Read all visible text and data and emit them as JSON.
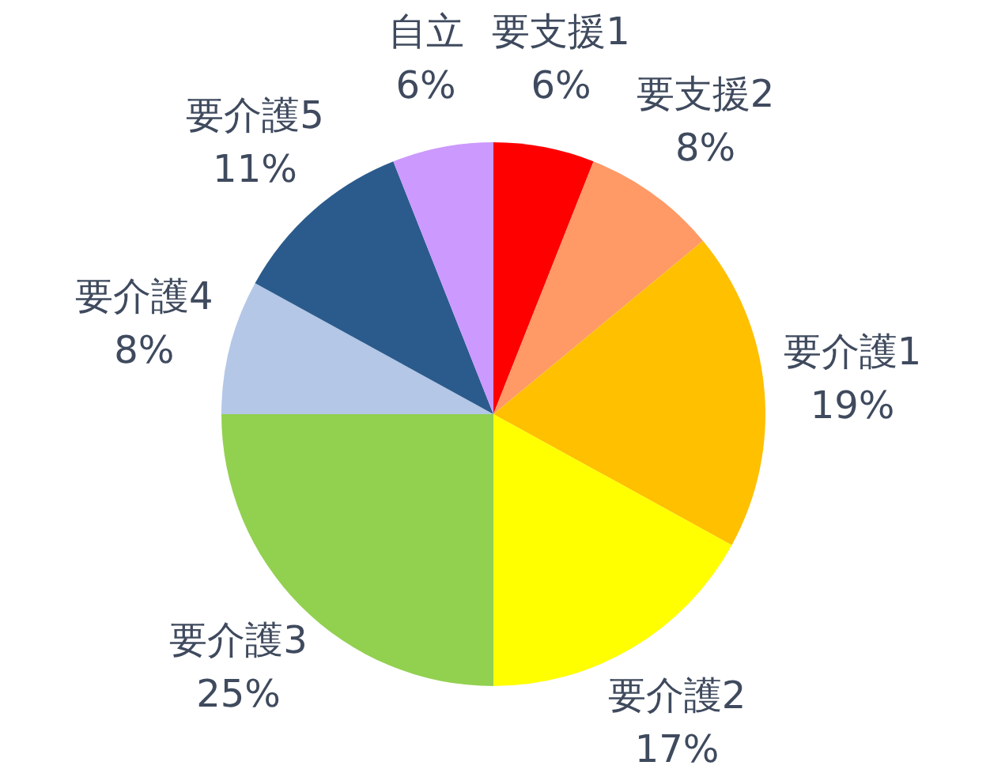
{
  "chart_data": {
    "type": "pie",
    "categories": [
      "要支援1",
      "要支援2",
      "要介護1",
      "要介護2",
      "要介護3",
      "要介護4",
      "要介護5",
      "自立"
    ],
    "values": [
      6,
      8,
      19,
      17,
      25,
      8,
      11,
      6
    ],
    "value_labels": [
      "6%",
      "8%",
      "19%",
      "17%",
      "25%",
      "8%",
      "11%",
      "6%"
    ],
    "colors": [
      "#ff0000",
      "#ff9966",
      "#ffc000",
      "#ffff00",
      "#92d050",
      "#b4c7e7",
      "#2b5b8c",
      "#cc99ff"
    ]
  }
}
